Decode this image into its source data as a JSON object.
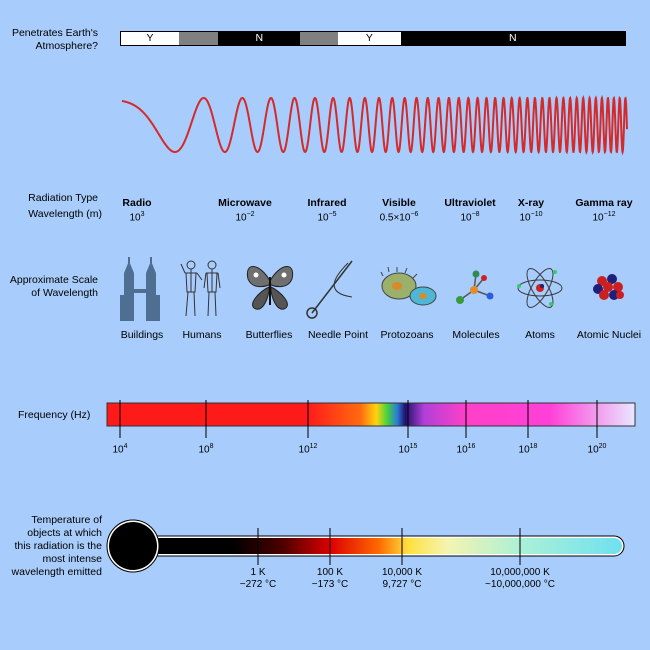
{
  "atmosphere": {
    "label_line1": "Penetrates Earth's",
    "label_line2": "Atmosphere?",
    "segments": [
      {
        "text": "Y",
        "color": "#ffffff",
        "fraction": 0.115
      },
      {
        "text": "",
        "color": "#808080",
        "fraction": 0.078
      },
      {
        "text": "N",
        "color": "#000000",
        "fraction": 0.163
      },
      {
        "text": "",
        "color": "#808080",
        "fraction": 0.075
      },
      {
        "text": "Y",
        "color": "#ffffff",
        "fraction": 0.124
      },
      {
        "text": "N",
        "color": "#000000",
        "fraction": 0.445
      }
    ]
  },
  "radiation": {
    "type_label": "Radiation Type",
    "wavelength_label": "Wavelength (m)",
    "types": [
      {
        "name": "Radio",
        "base": "10",
        "exp": "3"
      },
      {
        "name": "Microwave",
        "base": "10",
        "exp": "−2"
      },
      {
        "name": "Infrared",
        "base": "10",
        "exp": "−5"
      },
      {
        "name": "Visible",
        "base": "0.5×10",
        "exp": "−6"
      },
      {
        "name": "Ultraviolet",
        "base": "10",
        "exp": "−8"
      },
      {
        "name": "X-ray",
        "base": "10",
        "exp": "−10"
      },
      {
        "name": "Gamma ray",
        "base": "10",
        "exp": "−12"
      }
    ]
  },
  "scale": {
    "label_line1": "Approximate Scale",
    "label_line2": "of Wavelength",
    "objects": [
      {
        "name": "Buildings",
        "icon": "buildings-icon"
      },
      {
        "name": "Humans",
        "icon": "humans-icon"
      },
      {
        "name": "Butterflies",
        "icon": "butterfly-icon"
      },
      {
        "name": "Needle Point",
        "icon": "needle-icon"
      },
      {
        "name": "Protozoans",
        "icon": "protozoan-icon"
      },
      {
        "name": "Molecules",
        "icon": "molecule-icon"
      },
      {
        "name": "Atoms",
        "icon": "atom-icon"
      },
      {
        "name": "Atomic Nuclei",
        "icon": "nucleus-icon"
      }
    ]
  },
  "frequency": {
    "label": "Frequency (Hz)",
    "ticks": [
      {
        "base": "10",
        "exp": "4"
      },
      {
        "base": "10",
        "exp": "8"
      },
      {
        "base": "10",
        "exp": "12"
      },
      {
        "base": "10",
        "exp": "15"
      },
      {
        "base": "10",
        "exp": "16"
      },
      {
        "base": "10",
        "exp": "18"
      },
      {
        "base": "10",
        "exp": "20"
      }
    ]
  },
  "temperature": {
    "label_lines": [
      "Temperature of",
      "objects at which",
      "this radiation is the",
      "most intense",
      "wavelength emitted"
    ],
    "ticks": [
      {
        "kelvin": "1 K",
        "celsius": "−272 °C"
      },
      {
        "kelvin": "100 K",
        "celsius": "−173 °C"
      },
      {
        "kelvin": "10,000 K",
        "celsius": "9,727 °C"
      },
      {
        "kelvin": "10,000,000 K",
        "celsius": "~10,000,000 °C"
      }
    ]
  },
  "colors": {
    "background": "#a8ccfb",
    "wave": "#d42a2a"
  }
}
